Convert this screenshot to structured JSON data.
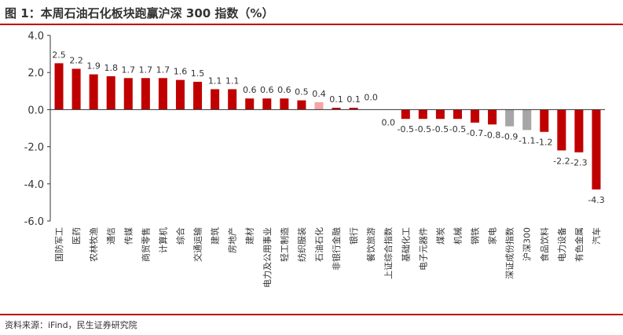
{
  "header": {
    "title": "图 1：本周石油石化板块跑赢沪深 300 指数（%）"
  },
  "footer": {
    "source": "资料来源：iFind，民生证券研究院"
  },
  "colors": {
    "main": "#c00000",
    "benchmark": "#a6a6a6",
    "highlight": "#f4a6a6",
    "axis": "#333333"
  },
  "chart_data": {
    "type": "bar",
    "title": "图 1：本周石油石化板块跑赢沪深 300 指数（%）",
    "xlabel": "",
    "ylabel": "",
    "ylim": [
      -6.0,
      4.0
    ],
    "yticks": [
      "4.0",
      "2.0",
      "0.0",
      "-2.0",
      "-4.0",
      "-6.0"
    ],
    "grid": false,
    "categories": [
      "国防军工",
      "医药",
      "农林牧渔",
      "通信",
      "传媒",
      "商贸零售",
      "计算机",
      "综合",
      "交通运输",
      "建筑",
      "房地产",
      "建材",
      "电力及公用事业",
      "轻工制造",
      "纺织服装",
      "石油石化",
      "非银行金融",
      "银行",
      "餐饮旅游",
      "上证综合指数",
      "基础化工",
      "电子元器件",
      "煤炭",
      "机械",
      "钢铁",
      "家电",
      "深证成份指数",
      "沪深300",
      "食品饮料",
      "电力设备",
      "有色金属",
      "汽车"
    ],
    "values": [
      2.5,
      2.2,
      1.9,
      1.8,
      1.7,
      1.7,
      1.7,
      1.6,
      1.5,
      1.1,
      1.1,
      0.6,
      0.6,
      0.6,
      0.5,
      0.4,
      0.1,
      0.1,
      0.0,
      0.0,
      -0.5,
      -0.5,
      -0.5,
      -0.5,
      -0.7,
      -0.8,
      -0.9,
      -1.1,
      -1.2,
      -2.2,
      -2.3,
      -4.3
    ],
    "labels": [
      "2.5",
      "2.2",
      "1.9",
      "1.8",
      "1.7",
      "1.7",
      "1.7",
      "1.6",
      "1.5",
      "1.1",
      "1.1",
      "0.6",
      "0.6",
      "0.6",
      "0.5",
      "0.4",
      "0.1",
      "0.1",
      "0.0",
      "0.0",
      "-0.5",
      "-0.5",
      "-0.5",
      "-0.5",
      "-0.7",
      "-0.8",
      "-0.9",
      "-1.1",
      "-1.2",
      "-2.2",
      "-2.3",
      "-4.3"
    ],
    "bar_colors": [
      "main",
      "main",
      "main",
      "main",
      "main",
      "main",
      "main",
      "main",
      "main",
      "main",
      "main",
      "main",
      "main",
      "main",
      "main",
      "highlight",
      "main",
      "main",
      "main",
      "benchmark",
      "main",
      "main",
      "main",
      "main",
      "main",
      "main",
      "benchmark",
      "benchmark",
      "main",
      "main",
      "main",
      "main"
    ]
  }
}
